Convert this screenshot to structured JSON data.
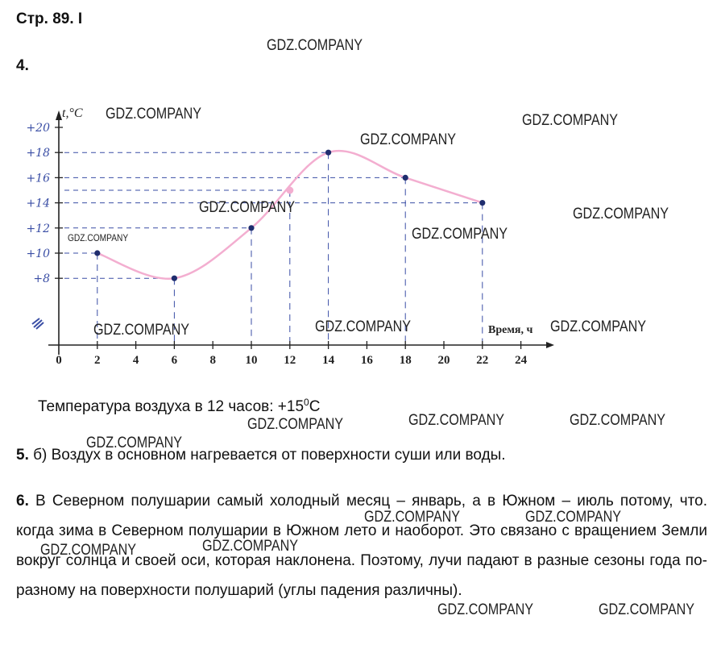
{
  "header": {
    "title": "Стр. 89. I"
  },
  "task4": {
    "number": "4."
  },
  "chart_data": {
    "type": "line",
    "x": [
      2,
      6,
      10,
      14,
      18,
      22
    ],
    "y": [
      10,
      8,
      12,
      18,
      16,
      14
    ],
    "highlight_point": {
      "x": 12,
      "y": 15
    },
    "x_ticks": [
      "0",
      "2",
      "4",
      "6",
      "8",
      "10",
      "12",
      "14",
      "16",
      "18",
      "20",
      "22",
      "24"
    ],
    "y_ticks": [
      "+8",
      "+10",
      "+12",
      "+14",
      "+16",
      "+18",
      "+20"
    ],
    "ylabel": "t,°C",
    "xlabel": "Время, ч",
    "xlim": [
      0,
      25
    ],
    "ylim": [
      0,
      22
    ],
    "line_color": "#f3aed0",
    "point_color": "#1f2d6e",
    "guide_color": "#3a4ea5"
  },
  "caption": {
    "text": "Температура воздуха в 12 часов: +15",
    "unit_sup": "0",
    "unit": "C"
  },
  "task5": {
    "number": "5.",
    "text": " б) Воздух в основном нагревается от поверхности суши или воды."
  },
  "task6": {
    "number": "6.",
    "text": " В Северном полушарии самый холодный месяц – январь, а в Южном – июль потому, что. когда зима в Северном полушарии в Южном лето и наоборот. Это связано с вращением Земли вокруг солнца и своей оси, которая наклонена. Поэтому, лучи падают в разные сезоны года по-разному на поверхности полушарий (углы падения различны)."
  },
  "watermark": "GDZ.COMPANY"
}
